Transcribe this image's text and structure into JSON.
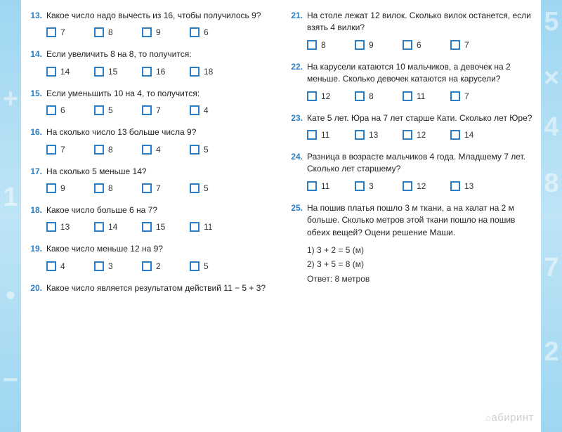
{
  "decor": {
    "left": [
      "+",
      "1",
      "•",
      "−"
    ],
    "right": [
      "5",
      "×",
      "4",
      "8",
      "7",
      "2"
    ]
  },
  "leftColumn": [
    {
      "n": "13.",
      "text": "Какое число надо вычесть из 16, чтобы получилось 9?",
      "opts": [
        "7",
        "8",
        "9",
        "6"
      ]
    },
    {
      "n": "14.",
      "text": "Если увеличить 8 на 8, то получится:",
      "opts": [
        "14",
        "15",
        "16",
        "18"
      ]
    },
    {
      "n": "15.",
      "text": "Если уменьшить 10 на 4, то получится:",
      "opts": [
        "6",
        "5",
        "7",
        "4"
      ]
    },
    {
      "n": "16.",
      "text": "На сколько число 13 больше числа 9?",
      "opts": [
        "7",
        "8",
        "4",
        "5"
      ]
    },
    {
      "n": "17.",
      "text": "На сколько 5 меньше 14?",
      "opts": [
        "9",
        "8",
        "7",
        "5"
      ]
    },
    {
      "n": "18.",
      "text": "Какое число больше 6 на 7?",
      "opts": [
        "13",
        "14",
        "15",
        "11"
      ]
    },
    {
      "n": "19.",
      "text": "Какое число меньше 12 на 9?",
      "opts": [
        "4",
        "3",
        "2",
        "5"
      ]
    },
    {
      "n": "20.",
      "text": "Какое число является результатом действий 11 − 5 + 3?",
      "opts": null
    }
  ],
  "rightColumn": [
    {
      "n": "21.",
      "text": "На столе лежат 12 вилок. Сколько вилок останется, если взять 4 вилки?",
      "opts": [
        "8",
        "9",
        "6",
        "7"
      ]
    },
    {
      "n": "22.",
      "text": "На карусели катаются 10 мальчиков, а девочек на 2 меньше. Сколько девочек катаются на карусели?",
      "opts": [
        "12",
        "8",
        "11",
        "7"
      ]
    },
    {
      "n": "23.",
      "text": "Кате 5 лет. Юра на 7 лет старше Кати. Сколько лет Юре?",
      "opts": [
        "11",
        "13",
        "12",
        "14"
      ]
    },
    {
      "n": "24.",
      "text": "Разница в возрасте мальчиков 4 года. Младшему 7 лет. Сколько лет старшему?",
      "opts": [
        "11",
        "3",
        "12",
        "13"
      ]
    },
    {
      "n": "25.",
      "text": "На пошив платья пошло 3 м ткани, а на халат на 2 м больше. Сколько метров этой ткани пошло на пошив обеих вещей? Оцени решение Маши.",
      "opts": null,
      "work": [
        "1)  3 + 2 = 5  (м)",
        "2)  3 + 5 = 8  (м)",
        "Ответ: 8 метров"
      ]
    }
  ],
  "watermark": "абиринт"
}
